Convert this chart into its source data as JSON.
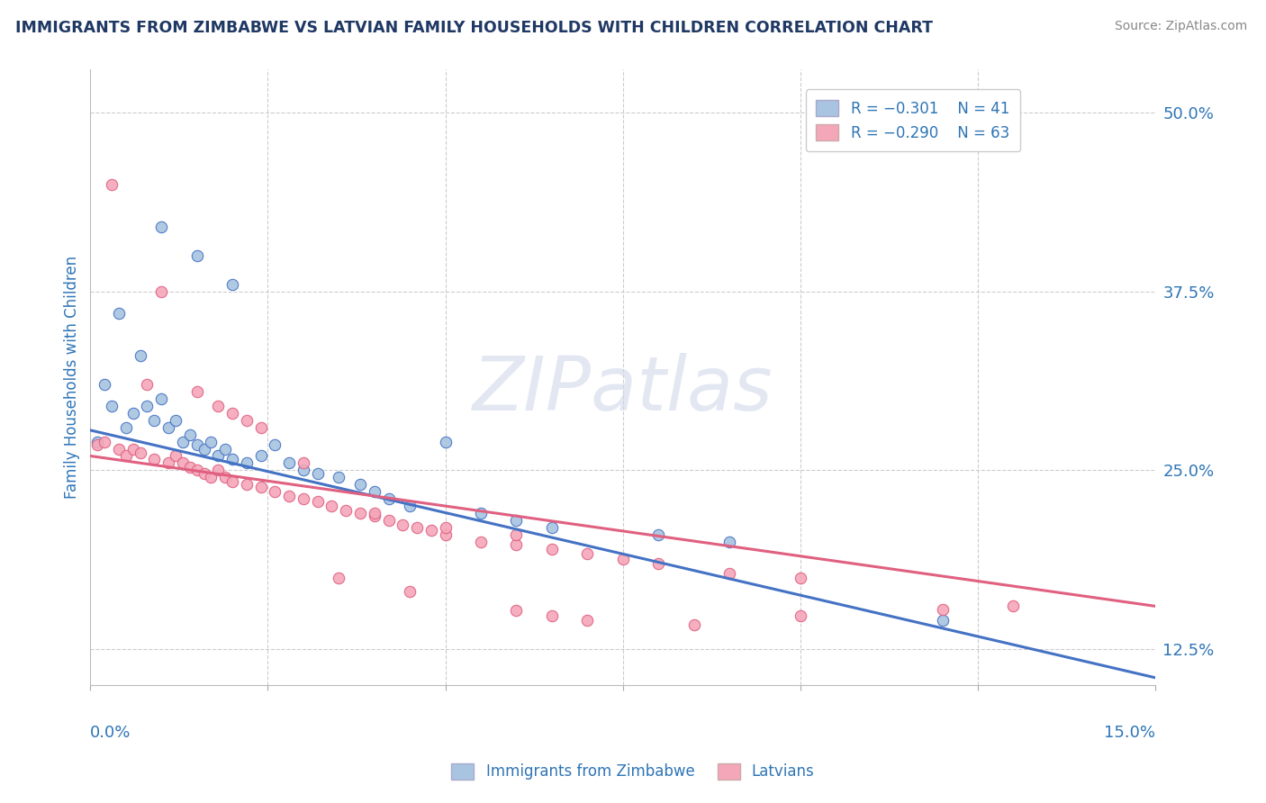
{
  "title": "IMMIGRANTS FROM ZIMBABWE VS LATVIAN FAMILY HOUSEHOLDS WITH CHILDREN CORRELATION CHART",
  "source": "Source: ZipAtlas.com",
  "ylabel": "Family Households with Children",
  "color_blue": "#a8c4e0",
  "color_pink": "#f4a7b9",
  "color_line_blue": "#4472c4",
  "color_line_pink": "#e06080",
  "color_title": "#1f3864",
  "color_text": "#2e75b6",
  "blue_points": [
    [
      0.001,
      0.27
    ],
    [
      0.002,
      0.31
    ],
    [
      0.003,
      0.295
    ],
    [
      0.004,
      0.36
    ],
    [
      0.005,
      0.28
    ],
    [
      0.006,
      0.29
    ],
    [
      0.007,
      0.33
    ],
    [
      0.008,
      0.295
    ],
    [
      0.009,
      0.285
    ],
    [
      0.01,
      0.3
    ],
    [
      0.011,
      0.28
    ],
    [
      0.012,
      0.285
    ],
    [
      0.013,
      0.27
    ],
    [
      0.014,
      0.275
    ],
    [
      0.015,
      0.268
    ],
    [
      0.016,
      0.265
    ],
    [
      0.017,
      0.27
    ],
    [
      0.018,
      0.26
    ],
    [
      0.019,
      0.265
    ],
    [
      0.02,
      0.258
    ],
    [
      0.022,
      0.255
    ],
    [
      0.024,
      0.26
    ],
    [
      0.026,
      0.268
    ],
    [
      0.028,
      0.255
    ],
    [
      0.03,
      0.25
    ],
    [
      0.032,
      0.248
    ],
    [
      0.035,
      0.245
    ],
    [
      0.038,
      0.24
    ],
    [
      0.04,
      0.235
    ],
    [
      0.042,
      0.23
    ],
    [
      0.045,
      0.225
    ],
    [
      0.055,
      0.22
    ],
    [
      0.06,
      0.215
    ],
    [
      0.065,
      0.21
    ],
    [
      0.08,
      0.205
    ],
    [
      0.09,
      0.2
    ],
    [
      0.01,
      0.42
    ],
    [
      0.015,
      0.4
    ],
    [
      0.02,
      0.38
    ],
    [
      0.05,
      0.27
    ],
    [
      0.12,
      0.145
    ]
  ],
  "pink_points": [
    [
      0.003,
      0.45
    ],
    [
      0.008,
      0.31
    ],
    [
      0.01,
      0.375
    ],
    [
      0.015,
      0.305
    ],
    [
      0.018,
      0.295
    ],
    [
      0.02,
      0.29
    ],
    [
      0.022,
      0.285
    ],
    [
      0.024,
      0.28
    ],
    [
      0.001,
      0.268
    ],
    [
      0.002,
      0.27
    ],
    [
      0.004,
      0.265
    ],
    [
      0.005,
      0.26
    ],
    [
      0.006,
      0.265
    ],
    [
      0.007,
      0.262
    ],
    [
      0.009,
      0.258
    ],
    [
      0.011,
      0.255
    ],
    [
      0.012,
      0.26
    ],
    [
      0.013,
      0.255
    ],
    [
      0.014,
      0.252
    ],
    [
      0.015,
      0.25
    ],
    [
      0.016,
      0.248
    ],
    [
      0.017,
      0.245
    ],
    [
      0.018,
      0.25
    ],
    [
      0.019,
      0.245
    ],
    [
      0.02,
      0.242
    ],
    [
      0.022,
      0.24
    ],
    [
      0.024,
      0.238
    ],
    [
      0.026,
      0.235
    ],
    [
      0.028,
      0.232
    ],
    [
      0.03,
      0.23
    ],
    [
      0.032,
      0.228
    ],
    [
      0.034,
      0.225
    ],
    [
      0.036,
      0.222
    ],
    [
      0.038,
      0.22
    ],
    [
      0.04,
      0.218
    ],
    [
      0.042,
      0.215
    ],
    [
      0.044,
      0.212
    ],
    [
      0.046,
      0.21
    ],
    [
      0.048,
      0.208
    ],
    [
      0.05,
      0.205
    ],
    [
      0.055,
      0.2
    ],
    [
      0.06,
      0.198
    ],
    [
      0.065,
      0.195
    ],
    [
      0.07,
      0.192
    ],
    [
      0.075,
      0.188
    ],
    [
      0.08,
      0.185
    ],
    [
      0.09,
      0.178
    ],
    [
      0.1,
      0.175
    ],
    [
      0.03,
      0.255
    ],
    [
      0.04,
      0.22
    ],
    [
      0.05,
      0.21
    ],
    [
      0.06,
      0.205
    ],
    [
      0.035,
      0.175
    ],
    [
      0.045,
      0.165
    ],
    [
      0.06,
      0.152
    ],
    [
      0.065,
      0.148
    ],
    [
      0.07,
      0.145
    ],
    [
      0.085,
      0.142
    ],
    [
      0.1,
      0.148
    ],
    [
      0.12,
      0.153
    ],
    [
      0.13,
      0.155
    ]
  ],
  "xlim": [
    0.0,
    0.15
  ],
  "ylim": [
    0.1,
    0.53
  ],
  "xtick_positions": [
    0.0,
    0.025,
    0.05,
    0.075,
    0.1,
    0.125,
    0.15
  ],
  "ytick_right_positions": [
    0.125,
    0.25,
    0.375,
    0.5
  ],
  "ytick_right_labels": [
    "12.5%",
    "25.0%",
    "37.5%",
    "50.0%"
  ],
  "blue_line_x": [
    0.0,
    0.15
  ],
  "blue_line_y": [
    0.278,
    0.105
  ],
  "pink_line_x": [
    0.0,
    0.15
  ],
  "pink_line_y": [
    0.26,
    0.155
  ]
}
